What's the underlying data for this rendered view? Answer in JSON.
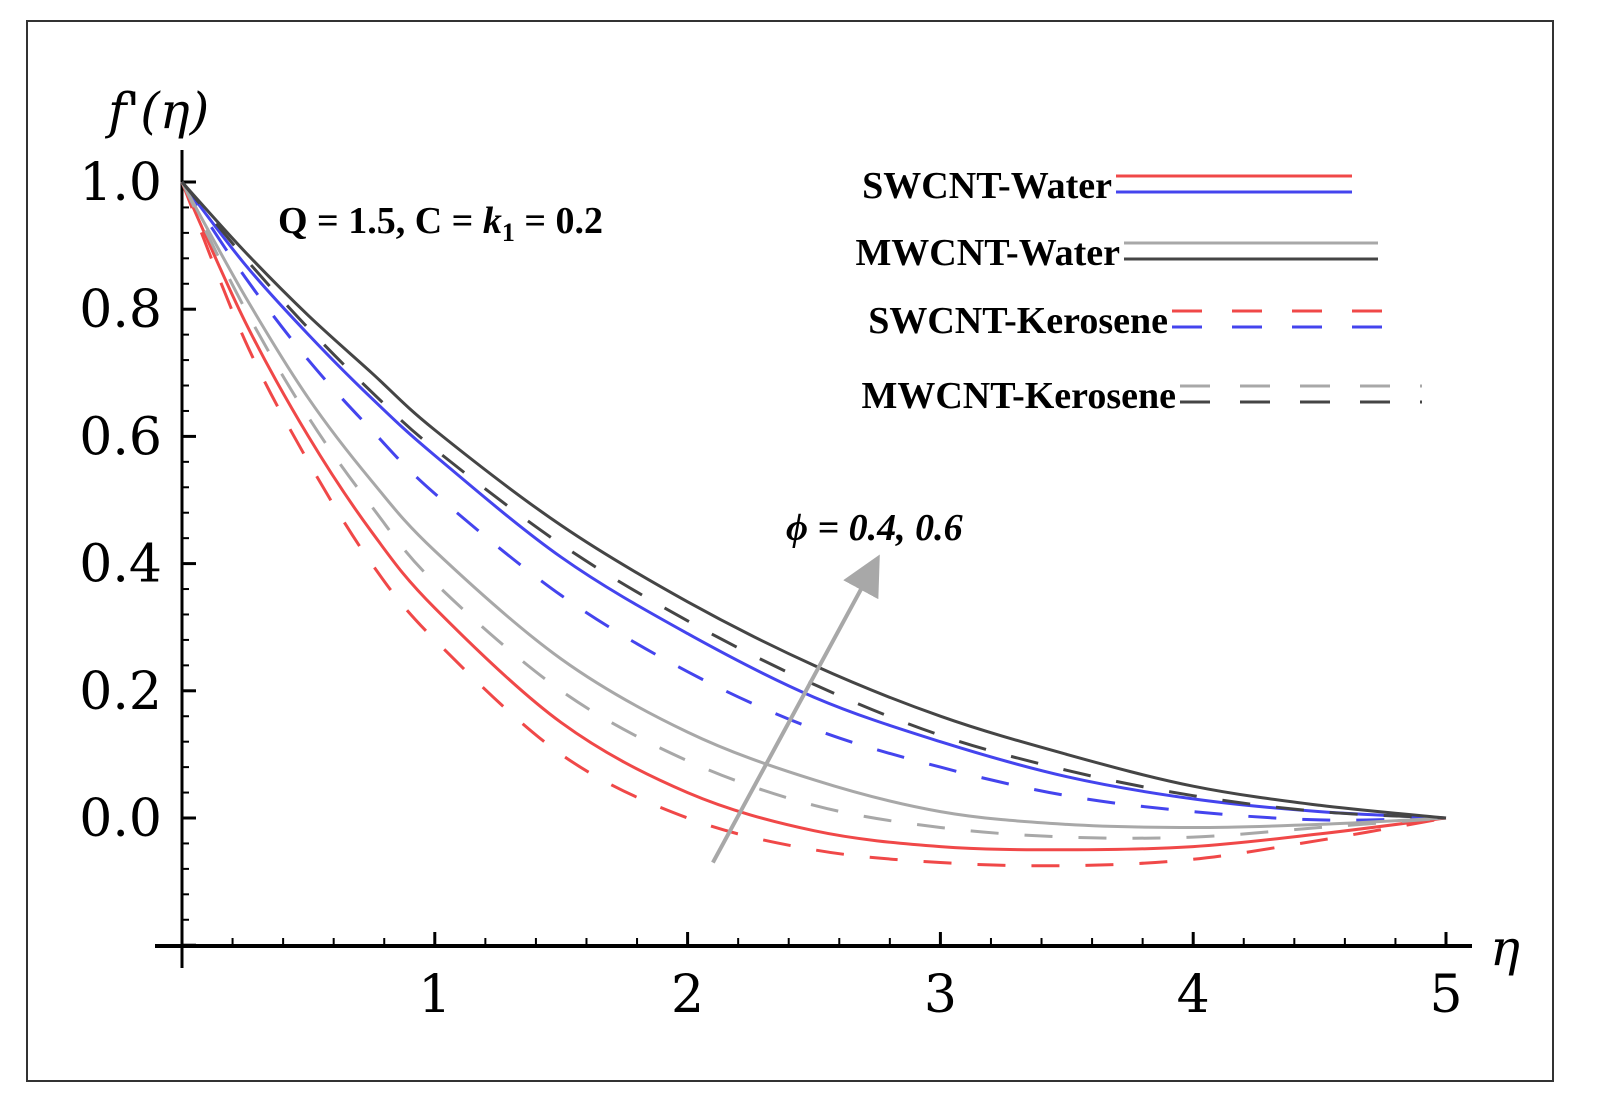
{
  "chart_data": {
    "type": "line",
    "title": "",
    "xlabel": "η",
    "ylabel": "f'(η)",
    "xlim": [
      0,
      5
    ],
    "ylim": [
      -0.2,
      1.0
    ],
    "grid": false,
    "legend_position": "top-right",
    "x_ticks": [
      "1",
      "2",
      "3",
      "4",
      "5"
    ],
    "y_ticks": [
      "1.0",
      "0.8",
      "0.6",
      "0.4",
      "0.2",
      "0.0"
    ],
    "x_tick_values": [
      1,
      2,
      3,
      4,
      5
    ],
    "y_tick_values": [
      1.0,
      0.8,
      0.6,
      0.4,
      0.2,
      0.0
    ],
    "x": [
      0,
      0.25,
      0.5,
      0.75,
      1,
      1.5,
      2,
      2.5,
      3,
      3.5,
      4,
      4.5,
      5
    ],
    "series": [
      {
        "color": "#f04848",
        "style": "solid",
        "values": [
          1.0,
          0.78,
          0.6,
          0.45,
          0.33,
          0.15,
          0.04,
          -0.02,
          -0.045,
          -0.05,
          -0.045,
          -0.025,
          0.0
        ]
      },
      {
        "color": "#f04848",
        "style": "dashed",
        "values": [
          1.0,
          0.75,
          0.56,
          0.4,
          0.28,
          0.1,
          0.0,
          -0.05,
          -0.07,
          -0.075,
          -0.065,
          -0.035,
          0.0
        ]
      },
      {
        "color": "#4444ee",
        "style": "solid",
        "values": [
          1.0,
          0.87,
          0.76,
          0.66,
          0.57,
          0.41,
          0.29,
          0.19,
          0.12,
          0.065,
          0.03,
          0.01,
          0.0
        ]
      },
      {
        "color": "#4444ee",
        "style": "dashed",
        "values": [
          1.0,
          0.85,
          0.72,
          0.61,
          0.51,
          0.35,
          0.23,
          0.14,
          0.08,
          0.035,
          0.01,
          -0.003,
          0.0
        ]
      },
      {
        "color": "#a8a8a8",
        "style": "solid",
        "values": [
          1.0,
          0.82,
          0.66,
          0.53,
          0.42,
          0.25,
          0.135,
          0.06,
          0.01,
          -0.01,
          -0.015,
          -0.01,
          0.0
        ]
      },
      {
        "color": "#a8a8a8",
        "style": "dashed",
        "values": [
          1.0,
          0.8,
          0.63,
          0.49,
          0.37,
          0.2,
          0.09,
          0.02,
          -0.015,
          -0.03,
          -0.03,
          -0.015,
          0.0
        ]
      },
      {
        "color": "#454545",
        "style": "solid",
        "values": [
          1.0,
          0.89,
          0.79,
          0.7,
          0.61,
          0.46,
          0.34,
          0.24,
          0.16,
          0.1,
          0.05,
          0.02,
          0.0
        ]
      },
      {
        "color": "#454545",
        "style": "dashed",
        "values": [
          1.0,
          0.88,
          0.77,
          0.67,
          0.58,
          0.43,
          0.31,
          0.21,
          0.13,
          0.075,
          0.035,
          0.01,
          0.0
        ]
      }
    ],
    "legend": [
      {
        "label": "SWCNT-Water",
        "style": "solid",
        "colors": [
          "#f04848",
          "#4444ee"
        ]
      },
      {
        "label": "MWCNT-Water",
        "style": "solid",
        "colors": [
          "#a8a8a8",
          "#454545"
        ]
      },
      {
        "label": "SWCNT-Kerosene",
        "style": "dashed",
        "colors": [
          "#f04848",
          "#4444ee"
        ]
      },
      {
        "label": "MWCNT-Kerosene",
        "style": "dashed",
        "colors": [
          "#a8a8a8",
          "#454545"
        ]
      }
    ],
    "annotations": [
      {
        "text": "Q = 1.5, C = k",
        "sub": "1",
        "tail": " = 0.2"
      },
      {
        "text": "ϕ = 0.4, 0.6",
        "arrow_from": [
          2.1,
          -0.07
        ],
        "arrow_to": [
          2.7,
          0.37
        ],
        "arrow_color": "#a8a8a8"
      }
    ]
  }
}
